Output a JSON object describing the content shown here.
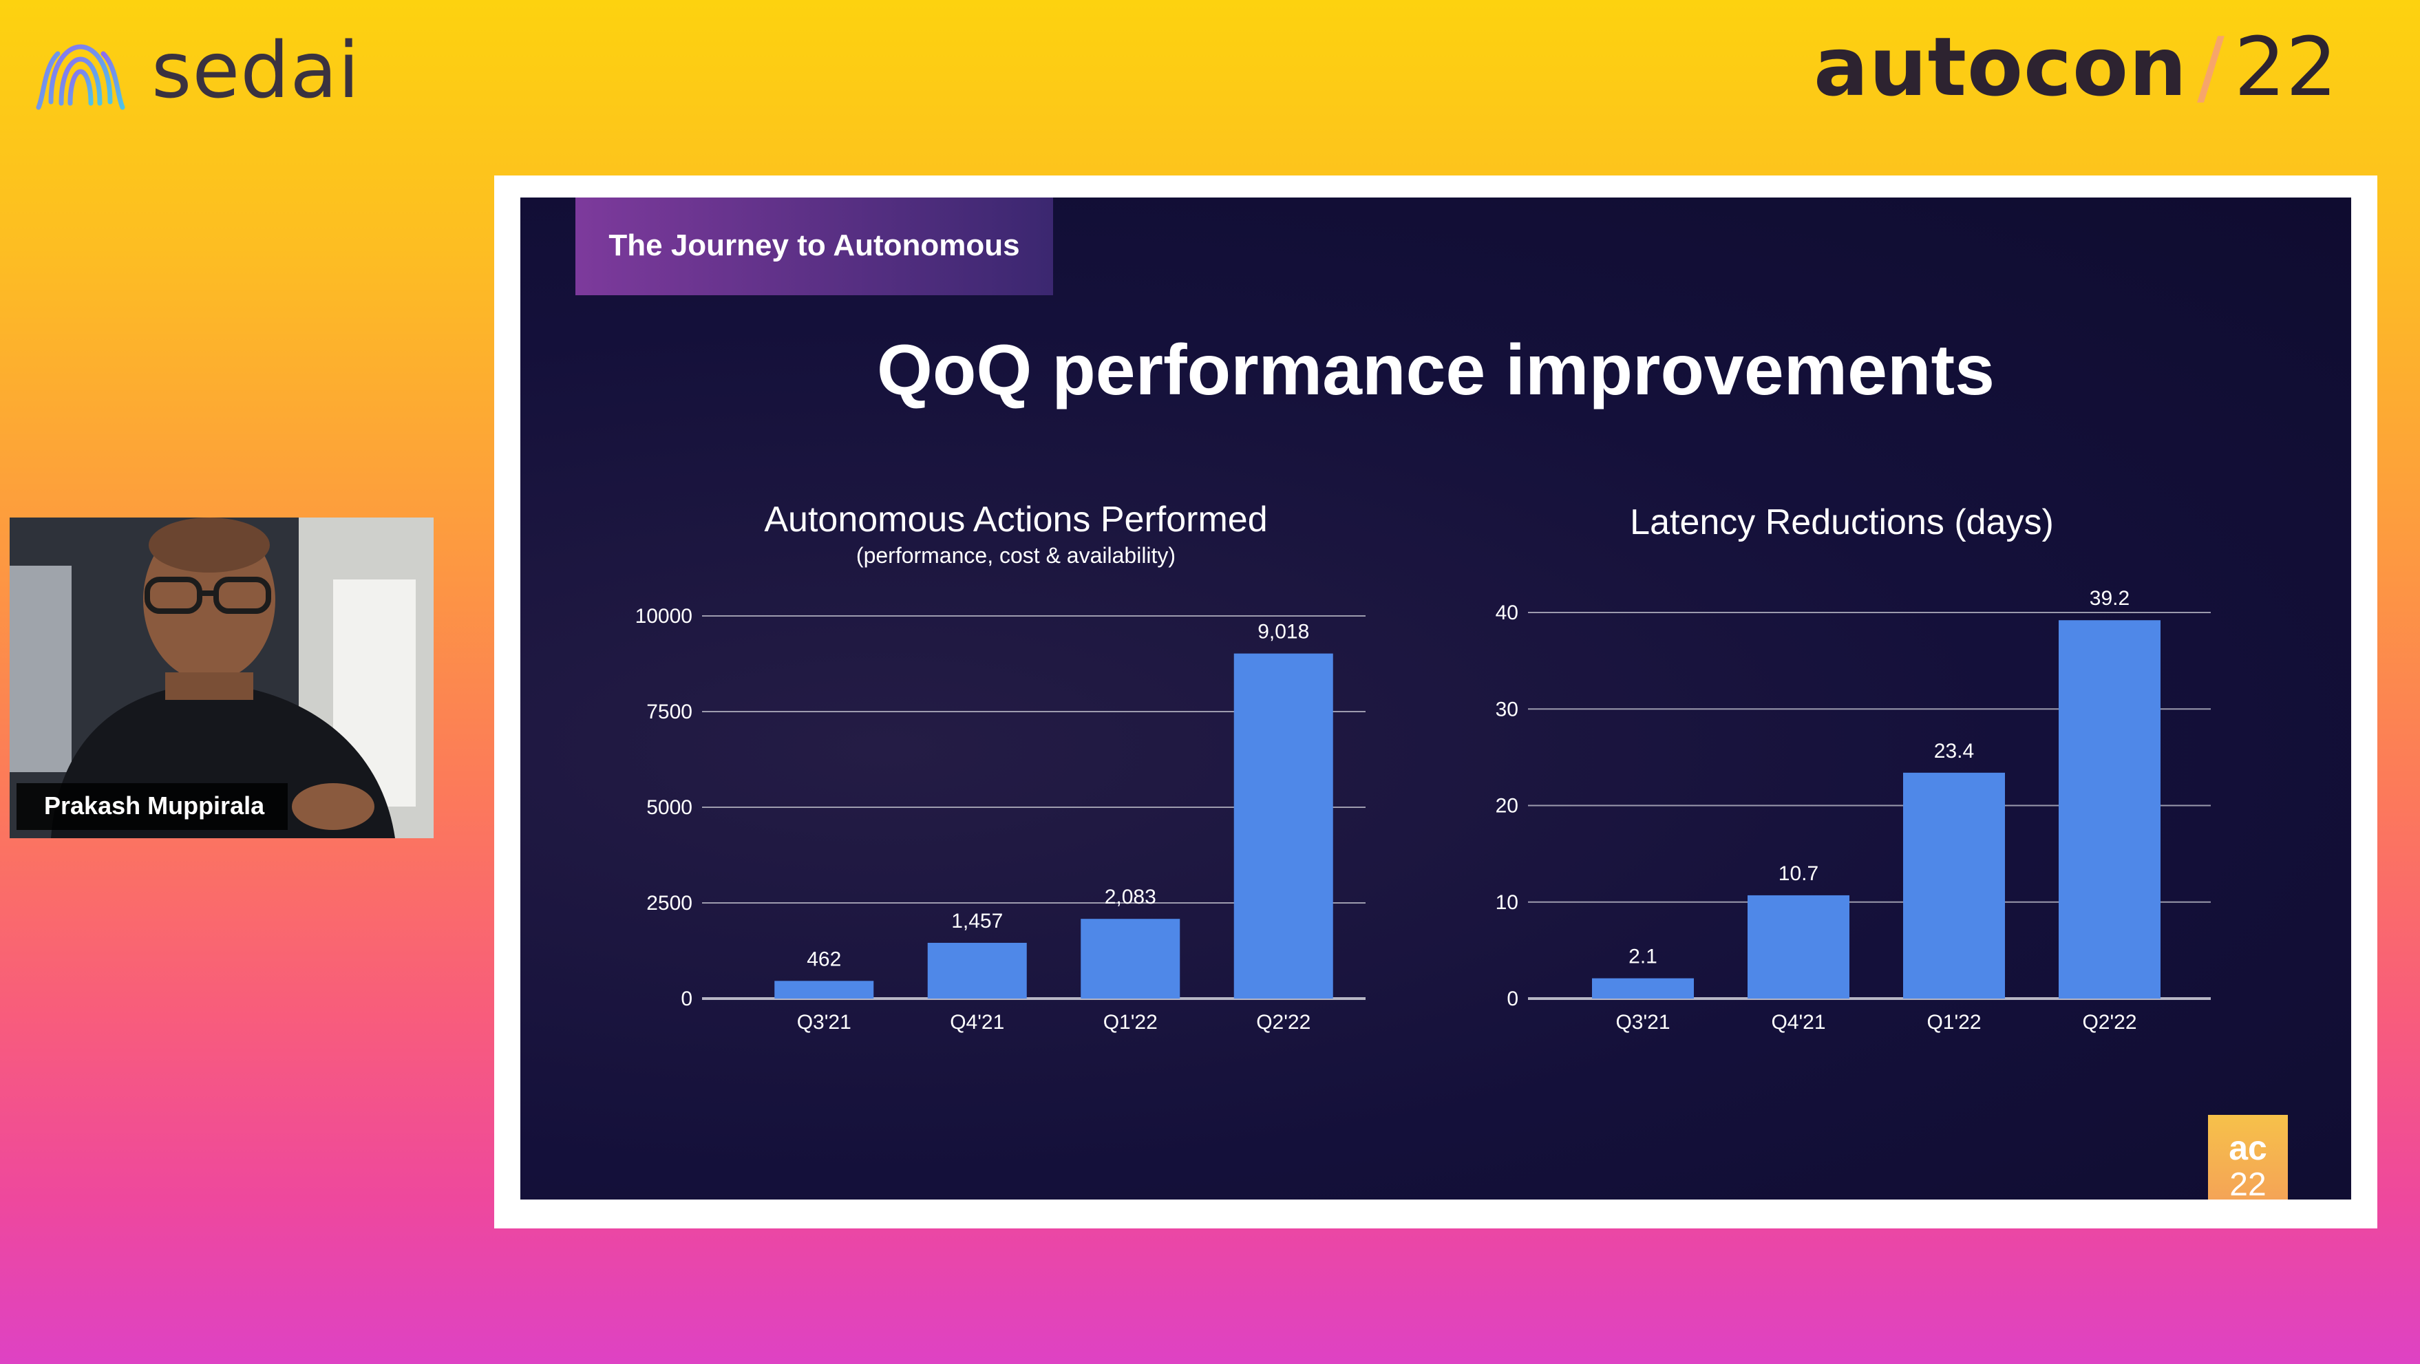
{
  "brand": {
    "name": "sedai",
    "icon": "sedai-logo-icon"
  },
  "event": {
    "name": "autocon",
    "year": "22"
  },
  "participant": {
    "name": "Prakash Muppirala"
  },
  "slide": {
    "section_tag": "The Journey to Autonomous",
    "title": "QoQ performance improvements",
    "badge_top": "ac",
    "badge_bottom": "22"
  },
  "colors": {
    "bar": "#4f88e8",
    "slide_bg": "#14103a",
    "axis": "#c9c9d4",
    "grid": "#c9c9d4"
  },
  "chart_data": [
    {
      "type": "bar",
      "title": "Autonomous Actions Performed",
      "subtitle": "(performance, cost & availability)",
      "categories": [
        "Q3'21",
        "Q4'21",
        "Q1'22",
        "Q2'22"
      ],
      "values": [
        462,
        1457,
        2083,
        9018
      ],
      "data_labels": [
        "462",
        "1,457",
        "2,083",
        "9,018"
      ],
      "yticks": [
        0,
        2500,
        5000,
        7500,
        10000
      ],
      "ytick_labels": [
        "0",
        "2500",
        "5000",
        "7500",
        "10000"
      ],
      "ylim": [
        0,
        10000
      ],
      "grid": true
    },
    {
      "type": "bar",
      "title": "Latency Reductions (days)",
      "subtitle": "",
      "categories": [
        "Q3'21",
        "Q4'21",
        "Q1'22",
        "Q2'22"
      ],
      "values": [
        2.1,
        10.7,
        23.4,
        39.2
      ],
      "data_labels": [
        "2.1",
        "10.7",
        "23.4",
        "39.2"
      ],
      "yticks": [
        0,
        10,
        20,
        30,
        40
      ],
      "ytick_labels": [
        "0",
        "10",
        "20",
        "30",
        "40"
      ],
      "ylim": [
        0,
        40
      ],
      "grid": true
    }
  ]
}
